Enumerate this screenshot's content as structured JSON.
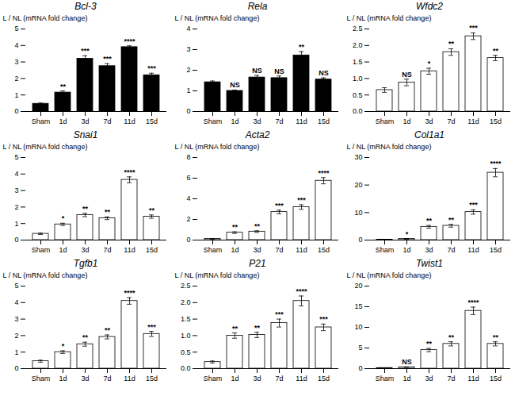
{
  "chart_data": [
    {
      "type": "bar",
      "title": "Bcl-3",
      "ylabel": "L / NL (mRNA fold change)",
      "categories": [
        "Sham",
        "1d",
        "3d",
        "7d",
        "11d",
        "15d"
      ],
      "values": [
        0.47,
        1.15,
        3.2,
        2.75,
        3.9,
        2.2
      ],
      "errors": [
        0.04,
        0.1,
        0.18,
        0.15,
        0.08,
        0.12
      ],
      "annotations": [
        null,
        "**",
        "***",
        "***",
        "****",
        "***"
      ],
      "color": "#000000",
      "ylim": [
        0,
        5
      ],
      "yticks": [
        0,
        1,
        2,
        3,
        4,
        5
      ]
    },
    {
      "type": "bar",
      "title": "Rela",
      "ylabel": "L / NL (mRNA fold change)",
      "categories": [
        "Sham",
        "1d",
        "3d",
        "7d",
        "11d",
        "15d"
      ],
      "values": [
        1.42,
        1.0,
        1.65,
        1.62,
        2.72,
        1.55
      ],
      "errors": [
        0.06,
        0.04,
        0.1,
        0.1,
        0.18,
        0.08
      ],
      "annotations": [
        null,
        "NS",
        "NS",
        "NS",
        "**",
        "NS"
      ],
      "color": "#000000",
      "ylim": [
        0,
        4
      ],
      "yticks": [
        0,
        1,
        2,
        3,
        4
      ]
    },
    {
      "type": "bar",
      "title": "Wfdc2",
      "ylabel": "L / NL (mRNA fold change)",
      "categories": [
        "Sham",
        "1d",
        "3d",
        "7d",
        "11d",
        "15d"
      ],
      "values": [
        0.65,
        0.88,
        1.22,
        1.8,
        2.28,
        1.62
      ],
      "errors": [
        0.07,
        0.1,
        0.09,
        0.1,
        0.1,
        0.08
      ],
      "annotations": [
        null,
        "NS",
        "*",
        "**",
        "***",
        "**"
      ],
      "color": "#ffffff",
      "ylim": [
        0,
        2.5
      ],
      "yticks": [
        {
          "value": 0,
          "label": "0.0"
        },
        0.5,
        {
          "value": 1,
          "label": "1.0"
        },
        1.5,
        {
          "value": 2,
          "label": "2.0"
        },
        2.5
      ]
    },
    {
      "type": "bar",
      "title": "Snai1",
      "ylabel": "L / NL (mRNA fold change)",
      "categories": [
        "Sham",
        "1d",
        "3d",
        "7d",
        "11d",
        "15d"
      ],
      "values": [
        0.38,
        0.95,
        1.52,
        1.32,
        3.65,
        1.42
      ],
      "errors": [
        0.04,
        0.07,
        0.1,
        0.08,
        0.18,
        0.1
      ],
      "annotations": [
        null,
        "*",
        "**",
        "**",
        "****",
        "**"
      ],
      "color": "#ffffff",
      "ylim": [
        0,
        5
      ],
      "yticks": [
        0,
        1,
        2,
        3,
        4,
        5
      ]
    },
    {
      "type": "bar",
      "title": "Acta2",
      "ylabel": "L / NL (mRNA fold change)",
      "categories": [
        "Sham",
        "1d",
        "3d",
        "7d",
        "11d",
        "15d"
      ],
      "values": [
        0.12,
        0.72,
        0.82,
        2.72,
        3.2,
        5.75
      ],
      "errors": [
        0.02,
        0.08,
        0.08,
        0.18,
        0.22,
        0.3
      ],
      "annotations": [
        null,
        "**",
        "**",
        "***",
        "***",
        "****"
      ],
      "color": "#ffffff",
      "ylim": [
        0,
        8
      ],
      "yticks": [
        0,
        2,
        4,
        6,
        8
      ]
    },
    {
      "type": "bar",
      "title": "Col1a1",
      "ylabel": "L / NL (mRNA fold change)",
      "categories": [
        "Sham",
        "1d",
        "3d",
        "7d",
        "11d",
        "15d"
      ],
      "values": [
        0.15,
        0.45,
        4.8,
        5.2,
        10.2,
        24.5
      ],
      "errors": [
        0.04,
        0.12,
        0.5,
        0.5,
        0.8,
        1.5
      ],
      "annotations": [
        null,
        "*",
        "**",
        "**",
        "***",
        "****"
      ],
      "color": "#ffffff",
      "ylim": [
        0,
        30
      ],
      "yticks": [
        0,
        10,
        20,
        30
      ]
    },
    {
      "type": "bar",
      "title": "Tgfb1",
      "ylabel": "L / NL (mRNA fold change)",
      "categories": [
        "Sham",
        "1d",
        "3d",
        "7d",
        "11d",
        "15d"
      ],
      "values": [
        0.45,
        1.0,
        1.48,
        1.92,
        4.1,
        2.1
      ],
      "errors": [
        0.06,
        0.08,
        0.12,
        0.12,
        0.2,
        0.15
      ],
      "annotations": [
        null,
        "*",
        "**",
        "**",
        "****",
        "***"
      ],
      "color": "#ffffff",
      "ylim": [
        0,
        5
      ],
      "yticks": [
        0,
        1,
        2,
        3,
        4,
        5
      ]
    },
    {
      "type": "bar",
      "title": "P21",
      "ylabel": "L / NL (mRNA fold change)",
      "categories": [
        "Sham",
        "1d",
        "3d",
        "7d",
        "11d",
        "15d"
      ],
      "values": [
        0.2,
        1.0,
        1.02,
        1.38,
        2.05,
        1.25
      ],
      "errors": [
        0.03,
        0.08,
        0.08,
        0.12,
        0.15,
        0.1
      ],
      "annotations": [
        null,
        "**",
        "**",
        "***",
        "****",
        "***"
      ],
      "color": "#ffffff",
      "ylim": [
        0,
        2.5
      ],
      "yticks": [
        {
          "value": 0,
          "label": "0.0"
        },
        0.5,
        {
          "value": 1,
          "label": "1.0"
        },
        1.5,
        {
          "value": 2,
          "label": "2.0"
        },
        2.5
      ]
    },
    {
      "type": "bar",
      "title": "Twist1",
      "ylabel": "L / NL (mRNA fold change)",
      "categories": [
        "Sham",
        "1d",
        "3d",
        "7d",
        "11d",
        "15d"
      ],
      "values": [
        0.15,
        0.35,
        4.5,
        6.0,
        14.0,
        6.0
      ],
      "errors": [
        0.02,
        0.04,
        0.4,
        0.5,
        0.9,
        0.5
      ],
      "annotations": [
        null,
        "NS",
        "**",
        "**",
        "****",
        "**"
      ],
      "color": "#ffffff",
      "ylim": [
        0,
        20
      ],
      "yticks": [
        0,
        5,
        10,
        15,
        20
      ]
    }
  ]
}
